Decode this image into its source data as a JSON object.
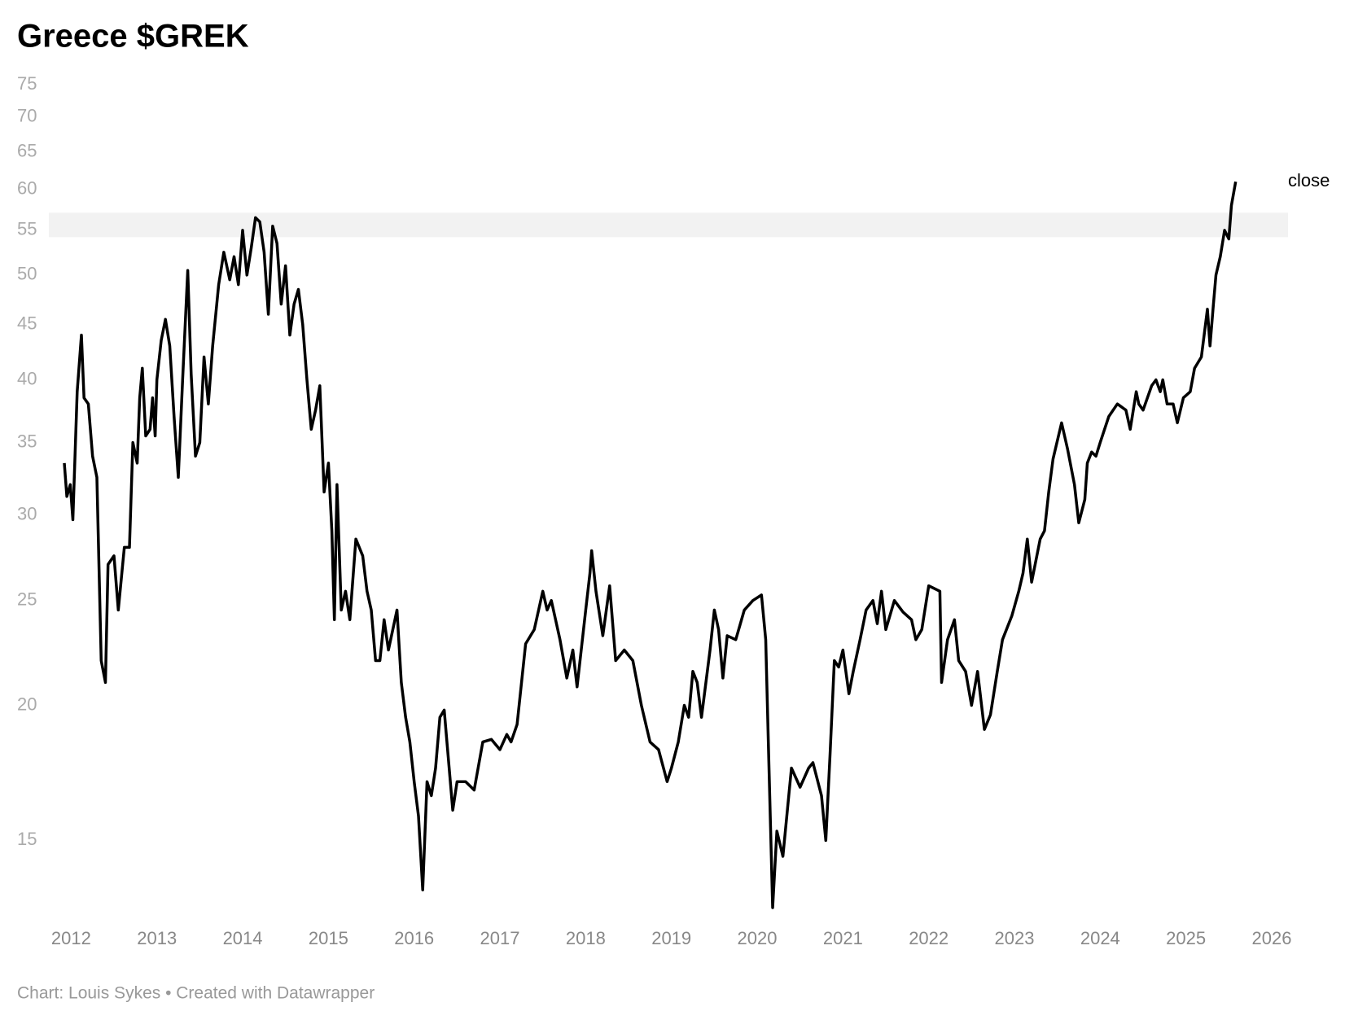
{
  "chart_data": {
    "type": "line",
    "title": "Greece $GREK",
    "footer": "Chart: Louis Sykes • Created with Datawrapper",
    "log_scale": true,
    "grid": false,
    "xlim": [
      2011.74,
      2026.19
    ],
    "xticks": [
      2012,
      2013,
      2014,
      2015,
      2016,
      2017,
      2018,
      2019,
      2020,
      2021,
      2022,
      2023,
      2024,
      2025,
      2026
    ],
    "ylim": [
      12.6,
      75
    ],
    "yticks": [
      15,
      20,
      25,
      30,
      35,
      40,
      45,
      50,
      55,
      60,
      65,
      70,
      75
    ],
    "highlight_range": [
      54.2,
      57.1
    ],
    "x": [
      2011.92,
      2011.95,
      2011.99,
      2012.02,
      2012.07,
      2012.12,
      2012.15,
      2012.2,
      2012.25,
      2012.3,
      2012.35,
      2012.4,
      2012.43,
      2012.5,
      2012.55,
      2012.62,
      2012.68,
      2012.72,
      2012.77,
      2012.8,
      2012.83,
      2012.87,
      2012.92,
      2012.95,
      2012.98,
      2013.0,
      2013.05,
      2013.1,
      2013.15,
      2013.2,
      2013.25,
      2013.3,
      2013.36,
      2013.4,
      2013.45,
      2013.5,
      2013.55,
      2013.6,
      2013.65,
      2013.72,
      2013.78,
      2013.85,
      2013.9,
      2013.95,
      2014.0,
      2014.05,
      2014.1,
      2014.15,
      2014.2,
      2014.25,
      2014.3,
      2014.35,
      2014.4,
      2014.45,
      2014.5,
      2014.55,
      2014.6,
      2014.65,
      2014.7,
      2014.75,
      2014.8,
      2014.85,
      2014.9,
      2014.95,
      2015.0,
      2015.04,
      2015.07,
      2015.1,
      2015.15,
      2015.2,
      2015.25,
      2015.32,
      2015.4,
      2015.45,
      2015.5,
      2015.55,
      2015.6,
      2015.65,
      2015.7,
      2015.8,
      2015.85,
      2015.9,
      2015.95,
      2016.0,
      2016.05,
      2016.1,
      2016.15,
      2016.2,
      2016.25,
      2016.3,
      2016.35,
      2016.45,
      2016.5,
      2016.6,
      2016.7,
      2016.8,
      2016.9,
      2017.0,
      2017.08,
      2017.13,
      2017.2,
      2017.3,
      2017.4,
      2017.5,
      2017.55,
      2017.6,
      2017.7,
      2017.78,
      2017.85,
      2017.9,
      2018.0,
      2018.05,
      2018.07,
      2018.12,
      2018.2,
      2018.28,
      2018.35,
      2018.45,
      2018.55,
      2018.65,
      2018.75,
      2018.85,
      2018.95,
      2019.0,
      2019.08,
      2019.15,
      2019.2,
      2019.25,
      2019.3,
      2019.35,
      2019.45,
      2019.5,
      2019.55,
      2019.6,
      2019.65,
      2019.75,
      2019.85,
      2019.95,
      2020.05,
      2020.1,
      2020.13,
      2020.18,
      2020.23,
      2020.3,
      2020.4,
      2020.5,
      2020.6,
      2020.65,
      2020.75,
      2020.8,
      2020.85,
      2020.9,
      2020.95,
      2021.0,
      2021.07,
      2021.12,
      2021.2,
      2021.27,
      2021.35,
      2021.4,
      2021.45,
      2021.5,
      2021.6,
      2021.7,
      2021.8,
      2021.85,
      2021.92,
      2022.0,
      2022.13,
      2022.15,
      2022.22,
      2022.3,
      2022.35,
      2022.43,
      2022.5,
      2022.57,
      2022.65,
      2022.72,
      2022.8,
      2022.86,
      2022.97,
      2023.05,
      2023.1,
      2023.15,
      2023.2,
      2023.3,
      2023.35,
      2023.4,
      2023.45,
      2023.55,
      2023.62,
      2023.7,
      2023.75,
      2023.82,
      2023.85,
      2023.9,
      2023.95,
      2024.0,
      2024.1,
      2024.2,
      2024.3,
      2024.35,
      2024.42,
      2024.45,
      2024.5,
      2024.6,
      2024.65,
      2024.7,
      2024.73,
      2024.78,
      2024.85,
      2024.9,
      2024.97,
      2025.05,
      2025.1,
      2025.18,
      2025.25,
      2025.28,
      2025.32,
      2025.35,
      2025.4,
      2025.45,
      2025.5,
      2025.53,
      2025.58
    ],
    "series": [
      {
        "name": "close",
        "color": "#000000",
        "values": [
          33.5,
          31.2,
          32,
          29.7,
          39,
          44,
          38.5,
          38,
          34,
          32.5,
          22,
          21,
          27,
          27.5,
          24.5,
          28,
          28,
          35,
          33.5,
          38.5,
          41,
          35.5,
          36,
          38.5,
          35.5,
          40,
          43.5,
          45.5,
          43,
          37,
          32.5,
          40,
          50.5,
          40.5,
          34,
          35,
          42,
          38,
          43,
          49,
          52.5,
          49.5,
          52,
          49,
          55,
          50,
          53,
          56.5,
          56,
          52.5,
          46,
          55.5,
          53.5,
          47,
          51,
          44,
          47,
          48.5,
          45,
          40,
          36,
          37.5,
          39.5,
          31.5,
          33.5,
          29,
          24,
          32,
          24.5,
          25.5,
          24,
          28.5,
          27.5,
          25.5,
          24.5,
          22,
          22,
          24,
          22.5,
          24.5,
          21,
          19.5,
          18.5,
          17,
          15.8,
          13.5,
          17,
          16.5,
          17.5,
          19.5,
          19.8,
          16,
          17,
          17,
          16.7,
          18.5,
          18.6,
          18.2,
          18.8,
          18.5,
          19.2,
          22.8,
          23.5,
          25.5,
          24.5,
          25,
          23,
          21.2,
          22.5,
          20.8,
          24.5,
          26.5,
          27.8,
          25.5,
          23.2,
          25.8,
          22,
          22.5,
          22,
          20,
          18.5,
          18.2,
          17,
          17.5,
          18.5,
          20,
          19.5,
          21.5,
          21,
          19.5,
          22.5,
          24.5,
          23.5,
          21.2,
          23.2,
          23,
          24.5,
          25,
          25.3,
          23,
          18.5,
          13,
          15.3,
          14.5,
          17.5,
          16.8,
          17.5,
          17.7,
          16.5,
          15,
          18,
          22,
          21.7,
          22.5,
          20.5,
          21.5,
          23,
          24.5,
          25,
          23.8,
          25.5,
          23.5,
          25,
          24.4,
          24,
          23,
          23.5,
          25.8,
          25.5,
          21,
          23,
          24,
          22,
          21.5,
          20,
          21.5,
          19,
          19.6,
          21.5,
          23,
          24.2,
          25.5,
          26.5,
          28.5,
          26,
          28.5,
          29,
          31.5,
          33.8,
          36.5,
          34.5,
          32,
          29.5,
          31,
          33.5,
          34.3,
          34,
          35,
          37,
          38,
          37.5,
          36,
          39,
          38,
          37.5,
          39.5,
          40,
          39,
          40,
          38,
          38,
          36.5,
          38.5,
          39,
          41,
          42,
          46.5,
          43,
          47,
          50,
          52,
          55,
          54,
          58,
          61
        ]
      }
    ]
  }
}
